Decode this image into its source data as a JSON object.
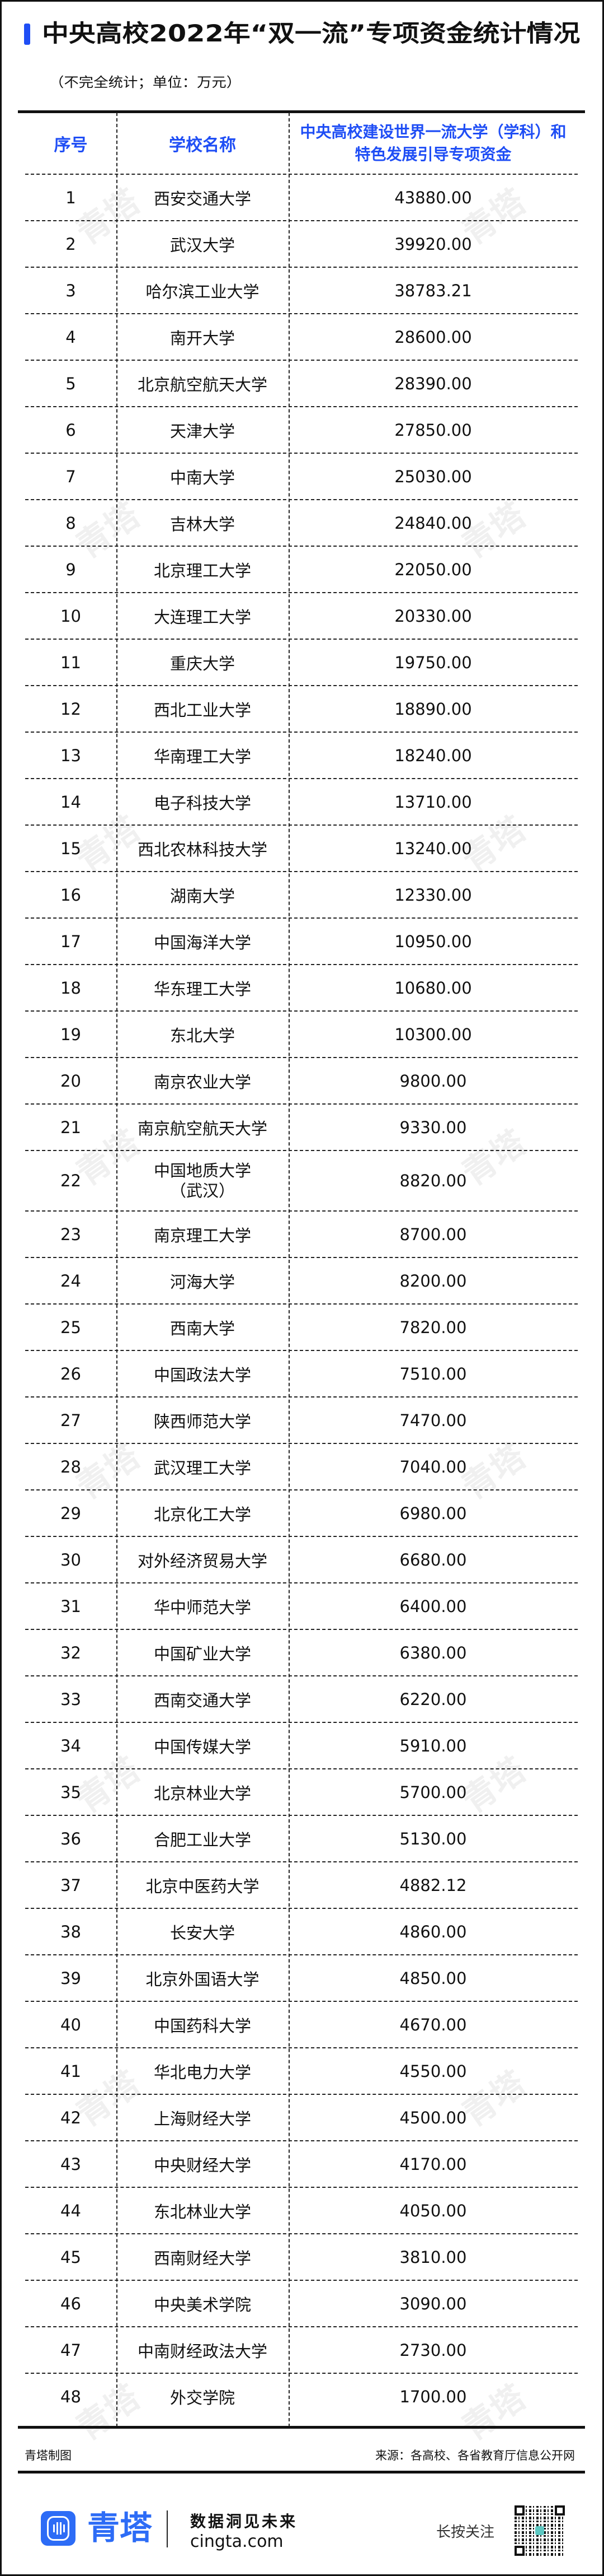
{
  "title": "中央高校2022年“双一流”专项资金统计情况",
  "subtitle": "（不完全统计；单位：万元）",
  "accent_color": "#1f4ef5",
  "table": {
    "headers": [
      "序号",
      "学校名称",
      "中央高校建设世界一流大学（学科）和特色发展引导专项资金"
    ],
    "rows": [
      [
        "1",
        "西安交通大学",
        "43880.00"
      ],
      [
        "2",
        "武汉大学",
        "39920.00"
      ],
      [
        "3",
        "哈尔滨工业大学",
        "38783.21"
      ],
      [
        "4",
        "南开大学",
        "28600.00"
      ],
      [
        "5",
        "北京航空航天大学",
        "28390.00"
      ],
      [
        "6",
        "天津大学",
        "27850.00"
      ],
      [
        "7",
        "中南大学",
        "25030.00"
      ],
      [
        "8",
        "吉林大学",
        "24840.00"
      ],
      [
        "9",
        "北京理工大学",
        "22050.00"
      ],
      [
        "10",
        "大连理工大学",
        "20330.00"
      ],
      [
        "11",
        "重庆大学",
        "19750.00"
      ],
      [
        "12",
        "西北工业大学",
        "18890.00"
      ],
      [
        "13",
        "华南理工大学",
        "18240.00"
      ],
      [
        "14",
        "电子科技大学",
        "13710.00"
      ],
      [
        "15",
        "西北农林科技大学",
        "13240.00"
      ],
      [
        "16",
        "湖南大学",
        "12330.00"
      ],
      [
        "17",
        "中国海洋大学",
        "10950.00"
      ],
      [
        "18",
        "华东理工大学",
        "10680.00"
      ],
      [
        "19",
        "东北大学",
        "10300.00"
      ],
      [
        "20",
        "南京农业大学",
        "9800.00"
      ],
      [
        "21",
        "南京航空航天大学",
        "9330.00"
      ],
      [
        "22",
        "中国地质大学\n（武汉）",
        "8820.00"
      ],
      [
        "23",
        "南京理工大学",
        "8700.00"
      ],
      [
        "24",
        "河海大学",
        "8200.00"
      ],
      [
        "25",
        "西南大学",
        "7820.00"
      ],
      [
        "26",
        "中国政法大学",
        "7510.00"
      ],
      [
        "27",
        "陕西师范大学",
        "7470.00"
      ],
      [
        "28",
        "武汉理工大学",
        "7040.00"
      ],
      [
        "29",
        "北京化工大学",
        "6980.00"
      ],
      [
        "30",
        "对外经济贸易大学",
        "6680.00"
      ],
      [
        "31",
        "华中师范大学",
        "6400.00"
      ],
      [
        "32",
        "中国矿业大学",
        "6380.00"
      ],
      [
        "33",
        "西南交通大学",
        "6220.00"
      ],
      [
        "34",
        "中国传媒大学",
        "5910.00"
      ],
      [
        "35",
        "北京林业大学",
        "5700.00"
      ],
      [
        "36",
        "合肥工业大学",
        "5130.00"
      ],
      [
        "37",
        "北京中医药大学",
        "4882.12"
      ],
      [
        "38",
        "长安大学",
        "4860.00"
      ],
      [
        "39",
        "北京外国语大学",
        "4850.00"
      ],
      [
        "40",
        "中国药科大学",
        "4670.00"
      ],
      [
        "41",
        "华北电力大学",
        "4550.00"
      ],
      [
        "42",
        "上海财经大学",
        "4500.00"
      ],
      [
        "43",
        "中央财经大学",
        "4170.00"
      ],
      [
        "44",
        "东北林业大学",
        "4050.00"
      ],
      [
        "45",
        "西南财经大学",
        "3810.00"
      ],
      [
        "46",
        "中央美术学院",
        "3090.00"
      ],
      [
        "47",
        "中南财经政法大学",
        "2730.00"
      ],
      [
        "48",
        "外交学院",
        "1700.00"
      ]
    ]
  },
  "footer": {
    "credit": "青塔制图",
    "source": "来源：各高校、各省教育厅信息公开网"
  },
  "brand": {
    "name": "青塔",
    "slogan": "数据洞见未来",
    "site": "cingta.com",
    "follow": "长按关注",
    "color": "#2d6cf6",
    "watermark": "青塔"
  }
}
